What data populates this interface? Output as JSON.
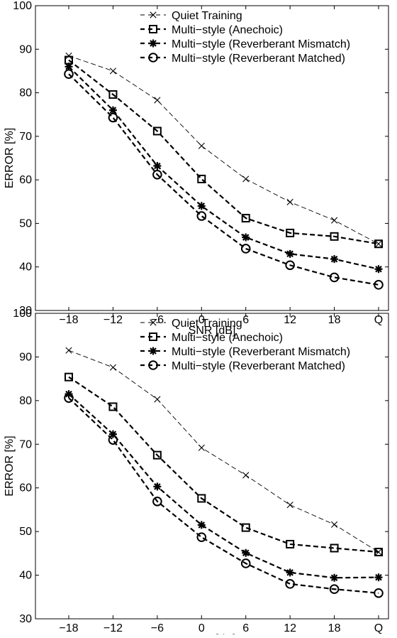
{
  "chart_data": [
    {
      "type": "line",
      "xlabel": "SNR [dB]",
      "ylabel": "ERROR [%]",
      "categories": [
        "−18",
        "−12",
        "−6",
        "0",
        "6",
        "12",
        "18",
        "Q"
      ],
      "ylim": [
        30,
        100
      ],
      "yticks": [
        "30",
        "40",
        "50",
        "60",
        "70",
        "80",
        "90",
        "100"
      ],
      "legend_position": "top-right",
      "grid": false,
      "series": [
        {
          "name": "Quiet Training",
          "marker": "x",
          "values": [
            88.5,
            85.0,
            78.3,
            67.8,
            60.2,
            54.9,
            50.7,
            45.3
          ]
        },
        {
          "name": "Multi−style (Anechoic)",
          "marker": "square",
          "values": [
            87.5,
            79.6,
            71.2,
            60.2,
            51.2,
            47.8,
            47.0,
            45.3
          ]
        },
        {
          "name": "Multi−style (Reverberant Mismatch)",
          "marker": "star",
          "values": [
            86.0,
            76.0,
            63.2,
            54.0,
            46.8,
            43.0,
            41.8,
            39.5
          ]
        },
        {
          "name": "Multi−style (Reverberant Matched)",
          "marker": "circle",
          "values": [
            84.3,
            74.3,
            61.2,
            51.7,
            44.2,
            40.4,
            37.6,
            35.9
          ]
        }
      ]
    },
    {
      "type": "line",
      "xlabel": "SNR [dB]",
      "ylabel": "ERROR [%]",
      "categories": [
        "−18",
        "−12",
        "−6",
        "0",
        "6",
        "12",
        "18",
        "Q"
      ],
      "ylim": [
        30,
        100
      ],
      "yticks": [
        "30",
        "40",
        "50",
        "60",
        "70",
        "80",
        "90",
        "100"
      ],
      "legend_position": "top-right",
      "grid": false,
      "series": [
        {
          "name": "Quiet Training",
          "marker": "x",
          "values": [
            91.5,
            87.6,
            80.3,
            69.2,
            62.9,
            56.1,
            51.6,
            45.3
          ]
        },
        {
          "name": "Multi−style (Anechoic)",
          "marker": "square",
          "values": [
            85.4,
            78.6,
            67.5,
            57.6,
            50.9,
            47.1,
            46.2,
            45.3
          ]
        },
        {
          "name": "Multi−style (Reverberant Mismatch)",
          "marker": "star",
          "values": [
            81.5,
            72.3,
            60.3,
            51.5,
            45.1,
            40.6,
            39.4,
            39.5
          ]
        },
        {
          "name": "Multi−style (Reverberant Matched)",
          "marker": "circle",
          "values": [
            80.6,
            71.0,
            56.9,
            48.7,
            42.7,
            38.0,
            36.8,
            35.9
          ]
        }
      ]
    }
  ]
}
